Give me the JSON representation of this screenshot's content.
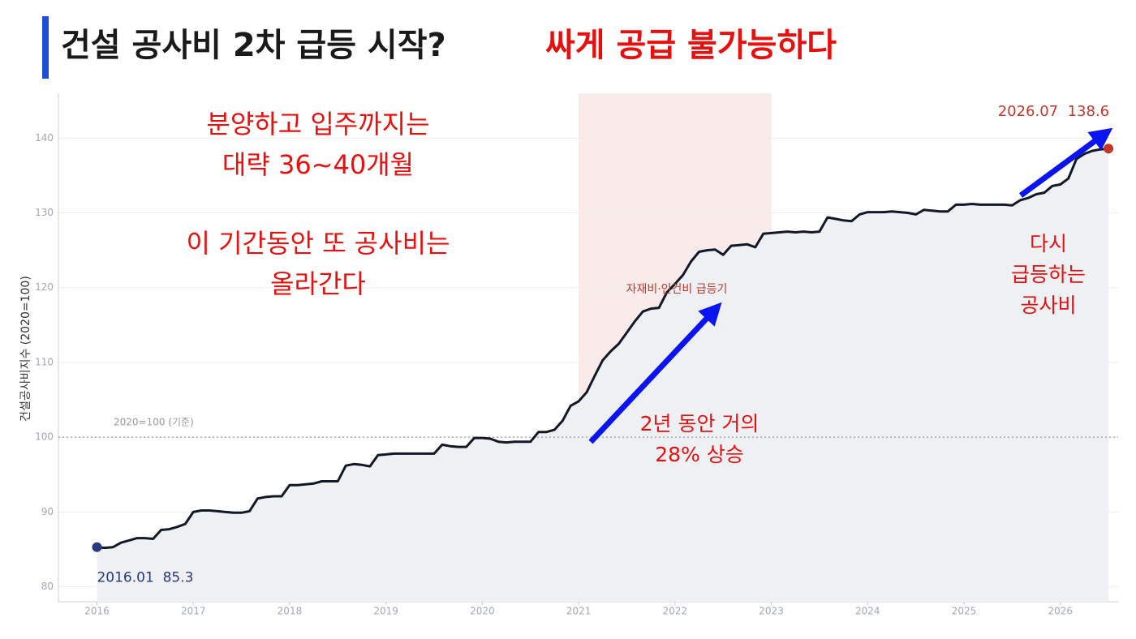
{
  "chart_data": {
    "type": "line",
    "title": "건설 공사비 2차 급등 시작?",
    "subtitle": "싸게 공급 불가능하다",
    "y_label": "건설공사비지수 (2020=100)",
    "color": "#111827",
    "fill_color": "#eef0f4",
    "x": [
      "2016-01",
      "2016-02",
      "2016-03",
      "2016-04",
      "2016-05",
      "2016-06",
      "2016-07",
      "2016-08",
      "2016-09",
      "2016-10",
      "2016-11",
      "2016-12",
      "2017-01",
      "2017-02",
      "2017-03",
      "2017-04",
      "2017-05",
      "2017-06",
      "2017-07",
      "2017-08",
      "2017-09",
      "2017-10",
      "2017-11",
      "2017-12",
      "2018-01",
      "2018-02",
      "2018-03",
      "2018-04",
      "2018-05",
      "2018-06",
      "2018-07",
      "2018-08",
      "2018-09",
      "2018-10",
      "2018-11",
      "2018-12",
      "2019-01",
      "2019-02",
      "2019-03",
      "2019-04",
      "2019-05",
      "2019-06",
      "2019-07",
      "2019-08",
      "2019-09",
      "2019-10",
      "2019-11",
      "2019-12",
      "2020-01",
      "2020-02",
      "2020-03",
      "2020-04",
      "2020-05",
      "2020-06",
      "2020-07",
      "2020-08",
      "2020-09",
      "2020-10",
      "2020-11",
      "2020-12",
      "2021-01",
      "2021-02",
      "2021-03",
      "2021-04",
      "2021-05",
      "2021-06",
      "2021-07",
      "2021-08",
      "2021-09",
      "2021-10",
      "2021-11",
      "2021-12",
      "2022-01",
      "2022-02",
      "2022-03",
      "2022-04",
      "2022-05",
      "2022-06",
      "2022-07",
      "2022-08",
      "2022-09",
      "2022-10",
      "2022-11",
      "2022-12",
      "2023-01",
      "2023-02",
      "2023-03",
      "2023-04",
      "2023-05",
      "2023-06",
      "2023-07",
      "2023-08",
      "2023-09",
      "2023-10",
      "2023-11",
      "2023-12",
      "2024-01",
      "2024-02",
      "2024-03",
      "2024-04",
      "2024-05",
      "2024-06",
      "2024-07",
      "2024-08",
      "2024-09",
      "2024-10",
      "2024-11",
      "2024-12",
      "2025-01",
      "2025-02",
      "2025-03",
      "2025-04",
      "2025-05",
      "2025-06",
      "2025-07",
      "2025-08",
      "2025-09",
      "2025-10",
      "2025-11",
      "2025-12",
      "2026-01",
      "2026-02",
      "2026-03",
      "2026-04",
      "2026-05",
      "2026-06",
      "2026-07"
    ],
    "values": [
      85.3,
      85.2,
      85.3,
      85.9,
      86.2,
      86.5,
      86.5,
      86.4,
      87.6,
      87.7,
      88.0,
      88.4,
      90.0,
      90.2,
      90.2,
      90.1,
      90.0,
      89.9,
      89.9,
      90.1,
      91.8,
      92.0,
      92.1,
      92.1,
      93.6,
      93.6,
      93.7,
      93.8,
      94.1,
      94.1,
      94.1,
      96.2,
      96.4,
      96.3,
      96.1,
      97.6,
      97.7,
      97.8,
      97.8,
      97.8,
      97.8,
      97.8,
      97.8,
      99.0,
      98.8,
      98.7,
      98.7,
      99.9,
      99.9,
      99.8,
      99.4,
      99.3,
      99.4,
      99.4,
      99.4,
      100.7,
      100.7,
      101.0,
      102.2,
      104.2,
      104.8,
      106.0,
      108.2,
      110.3,
      111.5,
      112.5,
      114.0,
      115.5,
      116.8,
      117.2,
      117.3,
      119.4,
      120.5,
      121.7,
      123.5,
      124.8,
      125.0,
      125.1,
      124.4,
      125.6,
      125.7,
      125.8,
      125.4,
      127.2,
      127.3,
      127.4,
      127.5,
      127.4,
      127.5,
      127.4,
      127.5,
      129.4,
      129.2,
      129.0,
      128.9,
      129.8,
      130.1,
      130.1,
      130.1,
      130.2,
      130.1,
      130.0,
      129.8,
      130.4,
      130.3,
      130.2,
      130.2,
      131.1,
      131.1,
      131.2,
      131.1,
      131.1,
      131.1,
      131.1,
      131.0,
      131.7,
      132.0,
      132.5,
      132.7,
      133.6,
      133.8,
      134.6,
      137.2,
      137.9,
      138.3,
      138.5,
      138.6
    ],
    "xlim": [
      2015.6,
      2026.6
    ],
    "xticks": [
      2016,
      2017,
      2018,
      2019,
      2020,
      2021,
      2022,
      2023,
      2024,
      2025,
      2026
    ],
    "ylim": [
      78,
      146
    ],
    "yticks": [
      80,
      90,
      100,
      110,
      120,
      130,
      140
    ],
    "grid": true,
    "reference": {
      "value": 100,
      "label": "2020=100 (기준)"
    },
    "highlight": {
      "from": 2021,
      "to": 2023,
      "label": "자재비·인건비 급등기"
    },
    "start_label": "2016.01  85.3",
    "end_label": "2026.07  138.6",
    "annotations": [
      [
        "분양하고 입주까지는",
        "대략 36~40개월"
      ],
      [
        "이 기간동안 또 공사비는",
        "올라간다"
      ],
      [
        "2년 동안 거의",
        "28% 상승"
      ],
      [
        "다시",
        "급등하는",
        "공사비"
      ]
    ]
  }
}
